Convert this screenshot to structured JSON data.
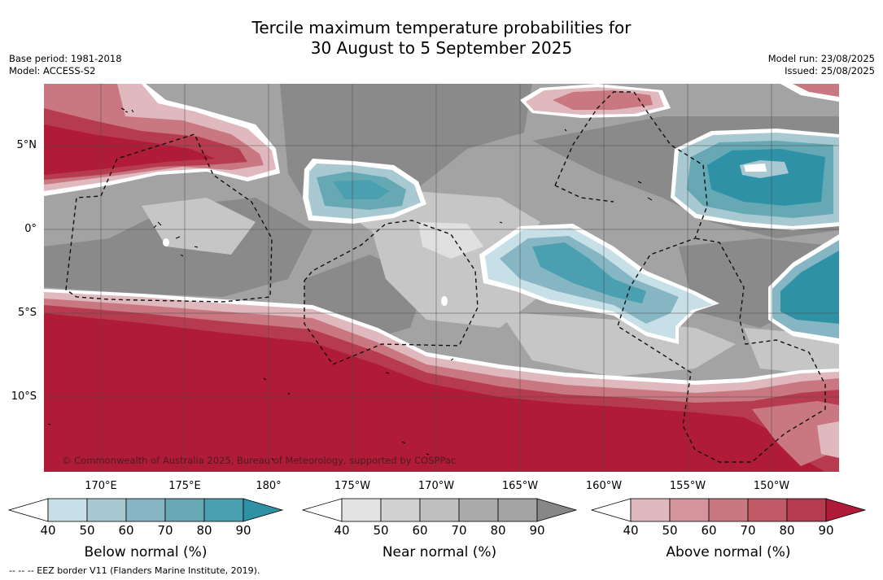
{
  "title": {
    "line1": "Tercile maximum temperature probabilities for",
    "line2": "30 August to 5 September 2025"
  },
  "meta_left": {
    "base_period": "Base period: 1981-2018",
    "model": "Model: ACCESS-S2"
  },
  "meta_right": {
    "model_run": "Model run: 23/08/2025",
    "issued": "Issued: 25/08/2025"
  },
  "map": {
    "lat_labels": [
      "5°N",
      "0°",
      "5°S",
      "10°S"
    ],
    "lon_labels_top_row": [
      "170°E",
      "175°E",
      "180°",
      "175°W",
      "170°W",
      "165°W",
      "160°W",
      "155°W",
      "150°W"
    ],
    "copyright": "© Commonwealth of Australia 2025, Bureau of Meteorology, supported by COSPPac",
    "colors": {
      "above": [
        "#dfb9bd",
        "#d4949b",
        "#c97780",
        "#c15a66",
        "#b73b4f",
        "#b01c38"
      ],
      "near": [
        "#e3e3e3",
        "#d2d2d2",
        "#c0c0c0",
        "#ababab",
        "#8a8a8a"
      ],
      "below": [
        "#c7dfe6",
        "#a8c9d1",
        "#86b6c3",
        "#67a8b5",
        "#4aa0b0",
        "#2e91a5"
      ],
      "coast": "#000000",
      "eez": "#111111",
      "grid": "#4a4a4a"
    }
  },
  "legends": [
    {
      "label": "Below normal (%)",
      "ticks": [
        "40",
        "50",
        "60",
        "70",
        "80",
        "90"
      ],
      "colors": [
        "#ffffff",
        "#c7dfe6",
        "#a8c9d1",
        "#86b6c3",
        "#67a8b5",
        "#4aa0b0",
        "#2e91a5"
      ]
    },
    {
      "label": "Near normal (%)",
      "ticks": [
        "40",
        "50",
        "60",
        "70",
        "80",
        "90"
      ],
      "colors": [
        "#ffffff",
        "#e3e3e3",
        "#d2d2d2",
        "#c0c0c0",
        "#ababab",
        "#a4a4a4",
        "#878787"
      ]
    },
    {
      "label": "Above normal (%)",
      "ticks": [
        "40",
        "50",
        "60",
        "70",
        "80",
        "90"
      ],
      "colors": [
        "#ffffff",
        "#dfb9bd",
        "#d4949b",
        "#c97780",
        "#c15a66",
        "#b73b4f",
        "#b01c38"
      ]
    }
  ],
  "footnote": "--  --  -- EEZ border V11 (Flanders Marine Institute, 2019)."
}
